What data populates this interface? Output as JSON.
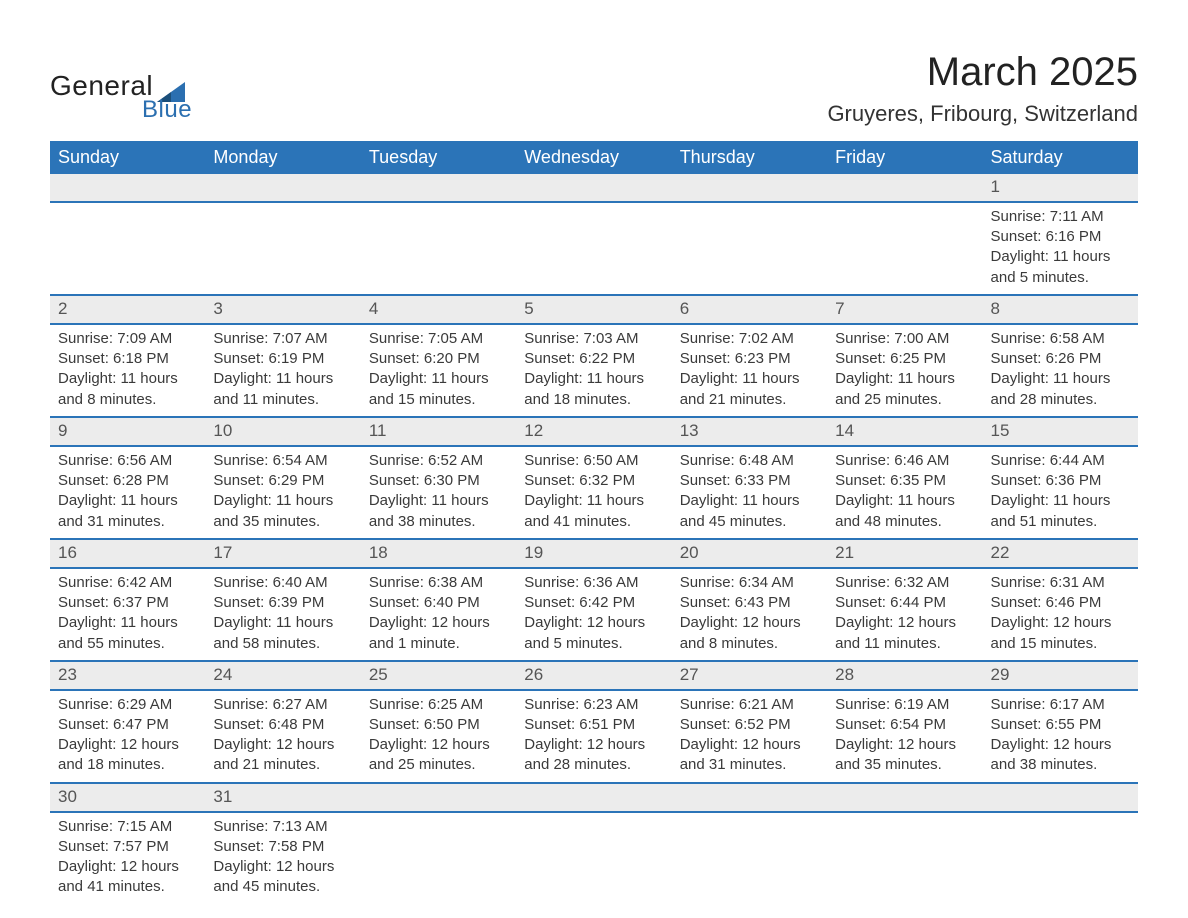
{
  "brand": {
    "general": "General",
    "blue": "Blue"
  },
  "title": "March 2025",
  "location": "Gruyeres, Fribourg, Switzerland",
  "colors": {
    "header_bg": "#2b74b8",
    "header_text": "#ffffff",
    "daynum_bg": "#ececec",
    "row_border": "#2b74b8",
    "body_text": "#3a3a3a",
    "logo_blue": "#2b6fb0"
  },
  "fonts": {
    "title_size_pt": 30,
    "location_size_pt": 17,
    "header_size_pt": 14,
    "body_size_pt": 11
  },
  "weekdays": [
    "Sunday",
    "Monday",
    "Tuesday",
    "Wednesday",
    "Thursday",
    "Friday",
    "Saturday"
  ],
  "weeks": [
    [
      null,
      null,
      null,
      null,
      null,
      null,
      {
        "n": "1",
        "sr": "Sunrise: 7:11 AM",
        "ss": "Sunset: 6:16 PM",
        "d1": "Daylight: 11 hours",
        "d2": "and 5 minutes."
      }
    ],
    [
      {
        "n": "2",
        "sr": "Sunrise: 7:09 AM",
        "ss": "Sunset: 6:18 PM",
        "d1": "Daylight: 11 hours",
        "d2": "and 8 minutes."
      },
      {
        "n": "3",
        "sr": "Sunrise: 7:07 AM",
        "ss": "Sunset: 6:19 PM",
        "d1": "Daylight: 11 hours",
        "d2": "and 11 minutes."
      },
      {
        "n": "4",
        "sr": "Sunrise: 7:05 AM",
        "ss": "Sunset: 6:20 PM",
        "d1": "Daylight: 11 hours",
        "d2": "and 15 minutes."
      },
      {
        "n": "5",
        "sr": "Sunrise: 7:03 AM",
        "ss": "Sunset: 6:22 PM",
        "d1": "Daylight: 11 hours",
        "d2": "and 18 minutes."
      },
      {
        "n": "6",
        "sr": "Sunrise: 7:02 AM",
        "ss": "Sunset: 6:23 PM",
        "d1": "Daylight: 11 hours",
        "d2": "and 21 minutes."
      },
      {
        "n": "7",
        "sr": "Sunrise: 7:00 AM",
        "ss": "Sunset: 6:25 PM",
        "d1": "Daylight: 11 hours",
        "d2": "and 25 minutes."
      },
      {
        "n": "8",
        "sr": "Sunrise: 6:58 AM",
        "ss": "Sunset: 6:26 PM",
        "d1": "Daylight: 11 hours",
        "d2": "and 28 minutes."
      }
    ],
    [
      {
        "n": "9",
        "sr": "Sunrise: 6:56 AM",
        "ss": "Sunset: 6:28 PM",
        "d1": "Daylight: 11 hours",
        "d2": "and 31 minutes."
      },
      {
        "n": "10",
        "sr": "Sunrise: 6:54 AM",
        "ss": "Sunset: 6:29 PM",
        "d1": "Daylight: 11 hours",
        "d2": "and 35 minutes."
      },
      {
        "n": "11",
        "sr": "Sunrise: 6:52 AM",
        "ss": "Sunset: 6:30 PM",
        "d1": "Daylight: 11 hours",
        "d2": "and 38 minutes."
      },
      {
        "n": "12",
        "sr": "Sunrise: 6:50 AM",
        "ss": "Sunset: 6:32 PM",
        "d1": "Daylight: 11 hours",
        "d2": "and 41 minutes."
      },
      {
        "n": "13",
        "sr": "Sunrise: 6:48 AM",
        "ss": "Sunset: 6:33 PM",
        "d1": "Daylight: 11 hours",
        "d2": "and 45 minutes."
      },
      {
        "n": "14",
        "sr": "Sunrise: 6:46 AM",
        "ss": "Sunset: 6:35 PM",
        "d1": "Daylight: 11 hours",
        "d2": "and 48 minutes."
      },
      {
        "n": "15",
        "sr": "Sunrise: 6:44 AM",
        "ss": "Sunset: 6:36 PM",
        "d1": "Daylight: 11 hours",
        "d2": "and 51 minutes."
      }
    ],
    [
      {
        "n": "16",
        "sr": "Sunrise: 6:42 AM",
        "ss": "Sunset: 6:37 PM",
        "d1": "Daylight: 11 hours",
        "d2": "and 55 minutes."
      },
      {
        "n": "17",
        "sr": "Sunrise: 6:40 AM",
        "ss": "Sunset: 6:39 PM",
        "d1": "Daylight: 11 hours",
        "d2": "and 58 minutes."
      },
      {
        "n": "18",
        "sr": "Sunrise: 6:38 AM",
        "ss": "Sunset: 6:40 PM",
        "d1": "Daylight: 12 hours",
        "d2": "and 1 minute."
      },
      {
        "n": "19",
        "sr": "Sunrise: 6:36 AM",
        "ss": "Sunset: 6:42 PM",
        "d1": "Daylight: 12 hours",
        "d2": "and 5 minutes."
      },
      {
        "n": "20",
        "sr": "Sunrise: 6:34 AM",
        "ss": "Sunset: 6:43 PM",
        "d1": "Daylight: 12 hours",
        "d2": "and 8 minutes."
      },
      {
        "n": "21",
        "sr": "Sunrise: 6:32 AM",
        "ss": "Sunset: 6:44 PM",
        "d1": "Daylight: 12 hours",
        "d2": "and 11 minutes."
      },
      {
        "n": "22",
        "sr": "Sunrise: 6:31 AM",
        "ss": "Sunset: 6:46 PM",
        "d1": "Daylight: 12 hours",
        "d2": "and 15 minutes."
      }
    ],
    [
      {
        "n": "23",
        "sr": "Sunrise: 6:29 AM",
        "ss": "Sunset: 6:47 PM",
        "d1": "Daylight: 12 hours",
        "d2": "and 18 minutes."
      },
      {
        "n": "24",
        "sr": "Sunrise: 6:27 AM",
        "ss": "Sunset: 6:48 PM",
        "d1": "Daylight: 12 hours",
        "d2": "and 21 minutes."
      },
      {
        "n": "25",
        "sr": "Sunrise: 6:25 AM",
        "ss": "Sunset: 6:50 PM",
        "d1": "Daylight: 12 hours",
        "d2": "and 25 minutes."
      },
      {
        "n": "26",
        "sr": "Sunrise: 6:23 AM",
        "ss": "Sunset: 6:51 PM",
        "d1": "Daylight: 12 hours",
        "d2": "and 28 minutes."
      },
      {
        "n": "27",
        "sr": "Sunrise: 6:21 AM",
        "ss": "Sunset: 6:52 PM",
        "d1": "Daylight: 12 hours",
        "d2": "and 31 minutes."
      },
      {
        "n": "28",
        "sr": "Sunrise: 6:19 AM",
        "ss": "Sunset: 6:54 PM",
        "d1": "Daylight: 12 hours",
        "d2": "and 35 minutes."
      },
      {
        "n": "29",
        "sr": "Sunrise: 6:17 AM",
        "ss": "Sunset: 6:55 PM",
        "d1": "Daylight: 12 hours",
        "d2": "and 38 minutes."
      }
    ],
    [
      {
        "n": "30",
        "sr": "Sunrise: 7:15 AM",
        "ss": "Sunset: 7:57 PM",
        "d1": "Daylight: 12 hours",
        "d2": "and 41 minutes."
      },
      {
        "n": "31",
        "sr": "Sunrise: 7:13 AM",
        "ss": "Sunset: 7:58 PM",
        "d1": "Daylight: 12 hours",
        "d2": "and 45 minutes."
      },
      null,
      null,
      null,
      null,
      null
    ]
  ]
}
